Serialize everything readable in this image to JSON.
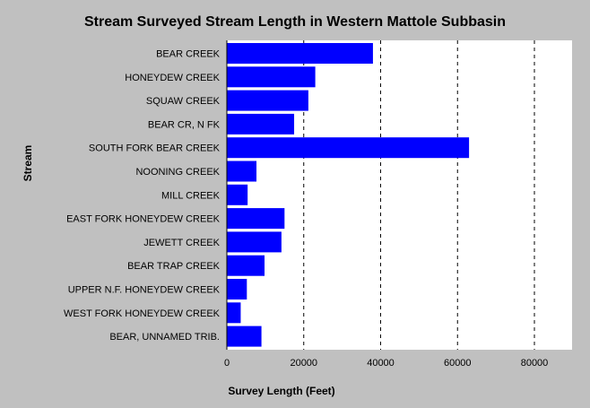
{
  "chart_data": {
    "type": "bar",
    "orientation": "horizontal",
    "title": "Stream Surveyed Stream Length in Western Mattole Subbasin",
    "xlabel": "Survey Length (Feet)",
    "ylabel": "Stream",
    "xlim": [
      0,
      80000
    ],
    "xticks": [
      0,
      20000,
      40000,
      60000,
      80000
    ],
    "tick_labels": [
      "0",
      "20000",
      "40000",
      "60000",
      "80000"
    ],
    "grid": "vertical dashed",
    "bar_color": "#0000ff",
    "categories": [
      "BEAR CREEK",
      "HONEYDEW CREEK",
      "SQUAW CREEK",
      "BEAR CR, N FK",
      "SOUTH FORK BEAR CREEK",
      "NOONING CREEK",
      "MILL CREEK",
      "EAST FORK HONEYDEW CREEK",
      "JEWETT CREEK",
      "BEAR TRAP CREEK",
      "UPPER N.F. HONEYDEW CREEK",
      "WEST FORK HONEYDEW CREEK",
      "BEAR, UNNAMED TRIB."
    ],
    "values": [
      38000,
      23000,
      21200,
      17500,
      63000,
      7700,
      5400,
      15000,
      14200,
      9800,
      5200,
      3600,
      9000
    ]
  }
}
